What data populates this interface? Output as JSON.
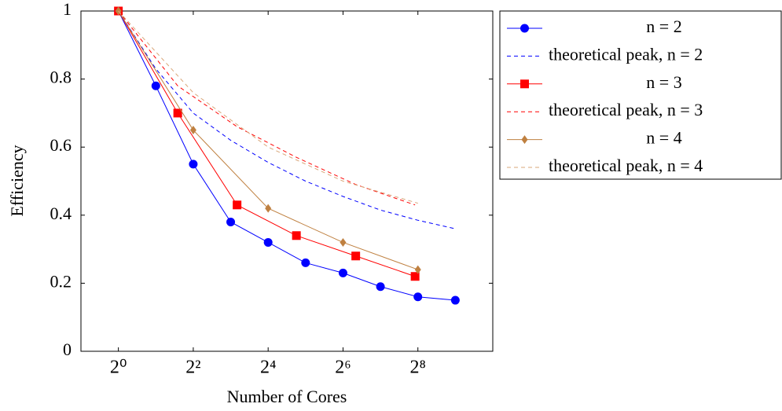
{
  "chart_data": {
    "type": "line",
    "xlabel": "Number of Cores",
    "ylabel": "Efficiency",
    "xscale": "log2",
    "xlim": [
      0.5,
      1024
    ],
    "ylim": [
      0,
      1
    ],
    "grid": false,
    "legend": "outside right",
    "xticks": [
      {
        "value": 1,
        "label": "2⁰"
      },
      {
        "value": 4,
        "label": "2²"
      },
      {
        "value": 16,
        "label": "2⁴"
      },
      {
        "value": 64,
        "label": "2⁶"
      },
      {
        "value": 256,
        "label": "2⁸"
      }
    ],
    "yticks": [
      0,
      0.2,
      0.4,
      0.6,
      0.8,
      1
    ],
    "series": [
      {
        "name": "n = 2",
        "color": "#0000ff",
        "marker": "circle",
        "x": [
          1,
          2,
          4,
          8,
          16,
          32,
          64,
          128,
          256,
          512
        ],
        "values": [
          1,
          0.78,
          0.55,
          0.38,
          0.32,
          0.26,
          0.23,
          0.19,
          0.16,
          0.15
        ]
      },
      {
        "name": "theoretical peak, n = 2",
        "color": "#0000ff",
        "dashed": true,
        "x": [
          1,
          2,
          4,
          8,
          16,
          32,
          64,
          128,
          256,
          512
        ],
        "values": [
          1,
          0.83,
          0.7,
          0.62,
          0.555,
          0.5,
          0.455,
          0.415,
          0.385,
          0.36
        ]
      },
      {
        "name": "n = 3",
        "color": "#ff0000",
        "marker": "square",
        "x": [
          1,
          3,
          9,
          27,
          81,
          243
        ],
        "values": [
          1,
          0.7,
          0.43,
          0.34,
          0.28,
          0.22
        ]
      },
      {
        "name": "theoretical peak, n = 3",
        "color": "#ff0000",
        "dashed": true,
        "x": [
          1,
          3,
          9,
          27,
          81,
          243
        ],
        "values": [
          1,
          0.78,
          0.66,
          0.57,
          0.49,
          0.43
        ]
      },
      {
        "name": "n = 4",
        "color": "#bf8040",
        "marker": "diamond",
        "x": [
          1,
          4,
          16,
          64,
          256
        ],
        "values": [
          1,
          0.65,
          0.42,
          0.32,
          0.24
        ]
      },
      {
        "name": "theoretical peak, n = 4",
        "color": "#d9a77a",
        "dashed": true,
        "x": [
          1,
          4,
          16,
          64,
          256
        ],
        "values": [
          1,
          0.76,
          0.6,
          0.5,
          0.435
        ]
      }
    ]
  }
}
